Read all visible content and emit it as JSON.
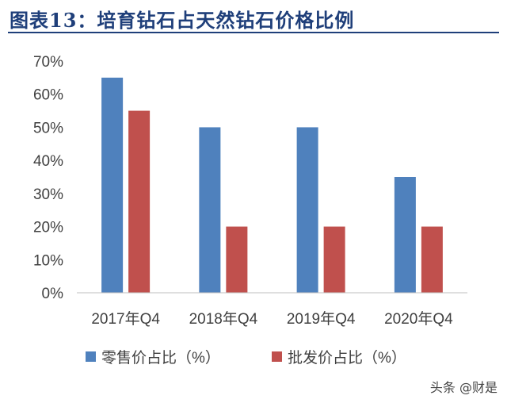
{
  "header": {
    "title": "图表13：培育钻石占天然钻石价格比例"
  },
  "chart_data": {
    "type": "bar",
    "title": "图表13：培育钻石占天然钻石价格比例",
    "categories": [
      "2017年Q4",
      "2018年Q4",
      "2019年Q4",
      "2020年Q4"
    ],
    "series": [
      {
        "name": "零售价占比（%）",
        "values": [
          65,
          50,
          50,
          35
        ],
        "color": "#4f81bd"
      },
      {
        "name": "批发价占比（%）",
        "values": [
          55,
          20,
          20,
          20
        ],
        "color": "#c0504d"
      }
    ],
    "y_ticks": [
      "0%",
      "10%",
      "20%",
      "30%",
      "40%",
      "50%",
      "60%",
      "70%"
    ],
    "ylim": [
      0,
      70
    ],
    "grid": false,
    "legend_position": "bottom"
  },
  "watermark": "头条 @财是"
}
